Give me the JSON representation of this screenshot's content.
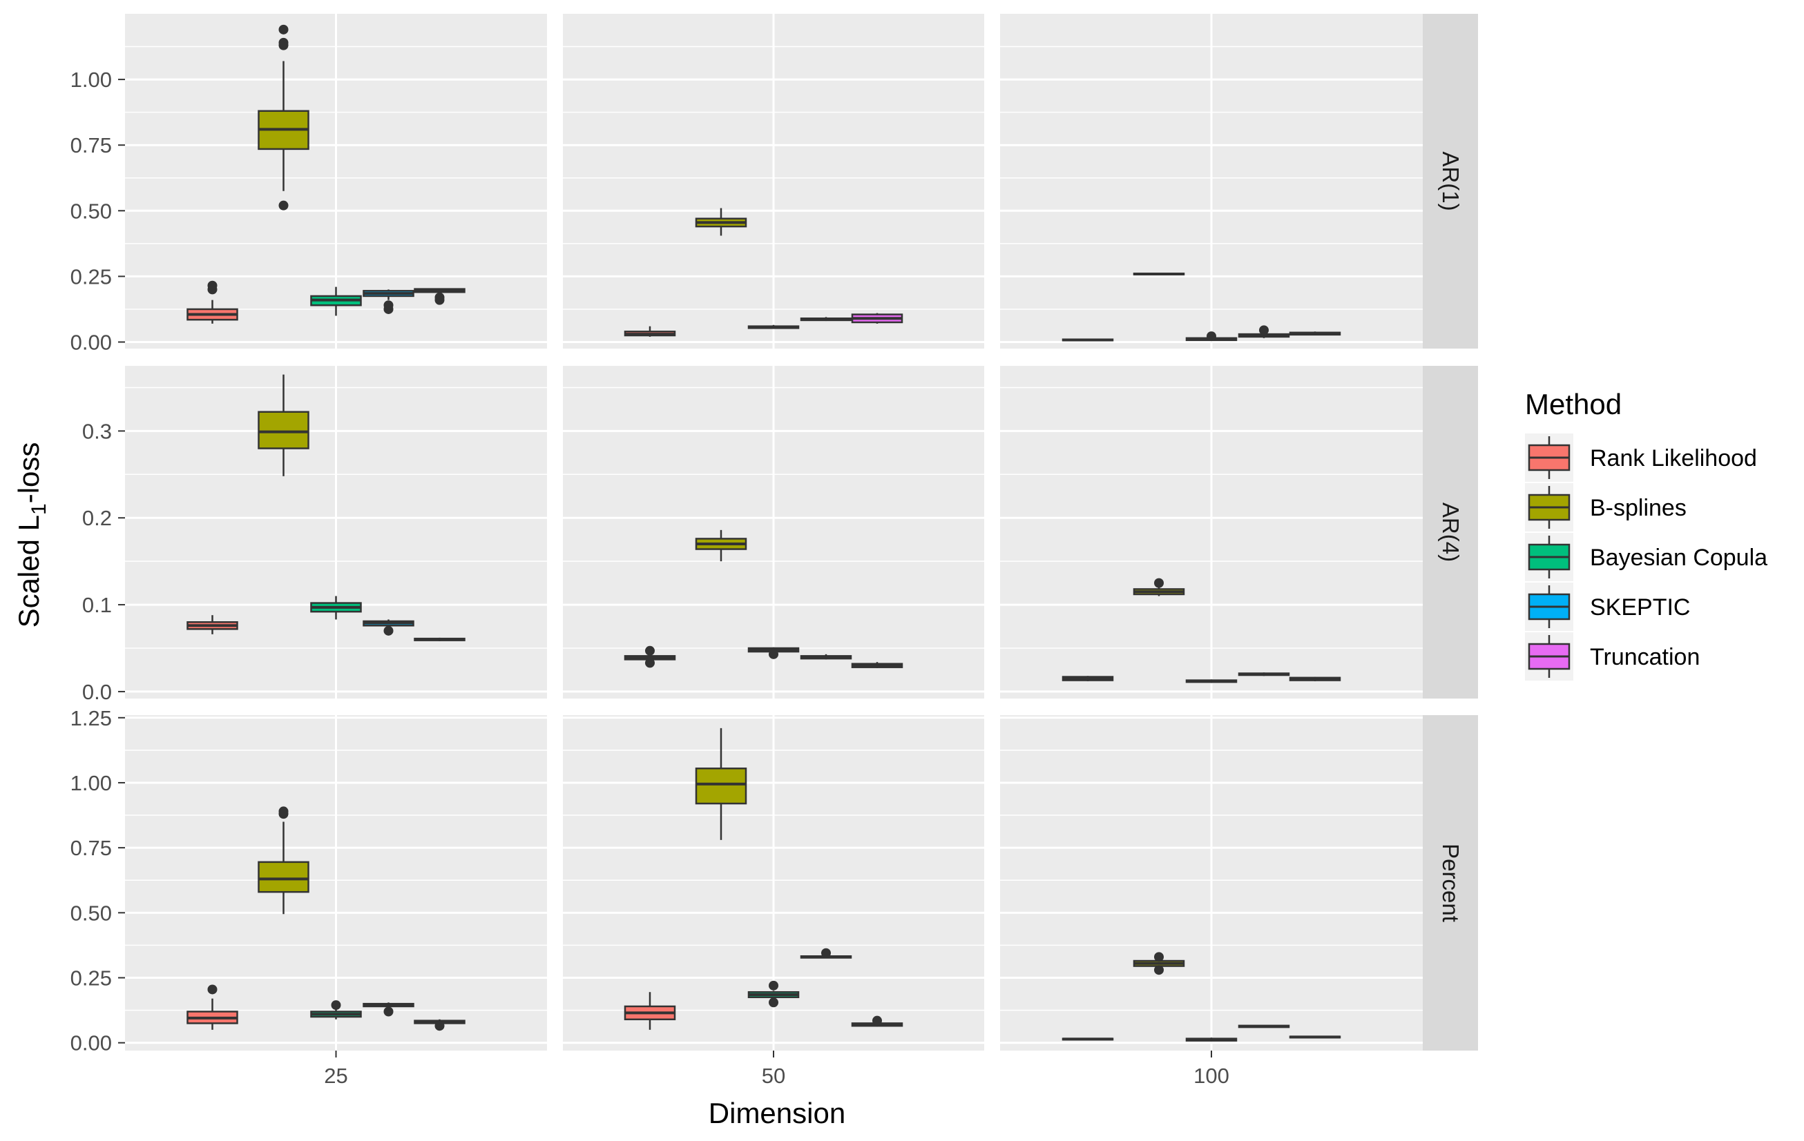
{
  "chart_data": {
    "type": "boxplot",
    "facet_rows": [
      "AR(1)",
      "AR(4)",
      "Percent"
    ],
    "facet_cols": [
      "25",
      "50",
      "100"
    ],
    "xlabel": "Dimension",
    "ylabel": "Scaled L",
    "ylabel_sub": "1",
    "ylabel_suffix": "-loss",
    "legend": {
      "title": "Method",
      "placement": "right",
      "items": [
        {
          "name": "Rank Likelihood",
          "color": "#F8766D"
        },
        {
          "name": "B-splines",
          "color": "#A3A500"
        },
        {
          "name": "Bayesian Copula",
          "color": "#00BF7D"
        },
        {
          "name": "SKEPTIC",
          "color": "#00B0F6"
        },
        {
          "name": "Truncation",
          "color": "#E76BF3"
        }
      ]
    },
    "rows": [
      {
        "label": "AR(1)",
        "ylim": [
          -0.025,
          1.25
        ],
        "ticks": [
          0.0,
          0.25,
          0.5,
          0.75,
          1.0
        ],
        "tick_labels": [
          "0.00",
          "0.25",
          "0.50",
          "0.75",
          "1.00"
        ],
        "panels": [
          {
            "col": "25",
            "boxes": [
              {
                "method": "Rank Likelihood",
                "min": 0.07,
                "q1": 0.085,
                "median": 0.105,
                "q3": 0.125,
                "max": 0.16,
                "outliers": [
                  0.2,
                  0.215
                ]
              },
              {
                "method": "B-splines",
                "min": 0.575,
                "q1": 0.735,
                "median": 0.81,
                "q3": 0.88,
                "max": 1.07,
                "outliers": [
                  0.52,
                  1.13,
                  1.14,
                  1.19
                ]
              },
              {
                "method": "Bayesian Copula",
                "min": 0.1,
                "q1": 0.14,
                "median": 0.16,
                "q3": 0.175,
                "max": 0.21,
                "outliers": []
              },
              {
                "method": "SKEPTIC",
                "min": 0.16,
                "q1": 0.175,
                "median": 0.185,
                "q3": 0.195,
                "max": 0.2,
                "outliers": [
                  0.125,
                  0.14
                ]
              },
              {
                "method": "Truncation",
                "min": 0.185,
                "q1": 0.19,
                "median": 0.197,
                "q3": 0.202,
                "max": 0.205,
                "outliers": [
                  0.16,
                  0.17
                ]
              }
            ]
          },
          {
            "col": "50",
            "boxes": [
              {
                "method": "Rank Likelihood",
                "min": 0.02,
                "q1": 0.025,
                "median": 0.03,
                "q3": 0.04,
                "max": 0.06,
                "outliers": []
              },
              {
                "method": "B-splines",
                "min": 0.405,
                "q1": 0.44,
                "median": 0.455,
                "q3": 0.47,
                "max": 0.51,
                "outliers": []
              },
              {
                "method": "Bayesian Copula",
                "min": 0.05,
                "q1": 0.053,
                "median": 0.057,
                "q3": 0.06,
                "max": 0.065,
                "outliers": []
              },
              {
                "method": "SKEPTIC",
                "min": 0.08,
                "q1": 0.083,
                "median": 0.087,
                "q3": 0.09,
                "max": 0.095,
                "outliers": []
              },
              {
                "method": "Truncation",
                "min": 0.07,
                "q1": 0.075,
                "median": 0.09,
                "q3": 0.105,
                "max": 0.11,
                "outliers": []
              }
            ]
          },
          {
            "col": "100",
            "boxes": [
              {
                "method": "Rank Likelihood",
                "min": 0.005,
                "q1": 0.006,
                "median": 0.008,
                "q3": 0.01,
                "max": 0.012,
                "outliers": []
              },
              {
                "method": "B-splines",
                "min": 0.255,
                "q1": 0.257,
                "median": 0.259,
                "q3": 0.261,
                "max": 0.263,
                "outliers": []
              },
              {
                "method": "Bayesian Copula",
                "min": 0.005,
                "q1": 0.007,
                "median": 0.01,
                "q3": 0.015,
                "max": 0.02,
                "outliers": [
                  0.022
                ]
              },
              {
                "method": "SKEPTIC",
                "min": 0.015,
                "q1": 0.02,
                "median": 0.025,
                "q3": 0.03,
                "max": 0.035,
                "outliers": [
                  0.045
                ]
              },
              {
                "method": "Truncation",
                "min": 0.025,
                "q1": 0.028,
                "median": 0.032,
                "q3": 0.036,
                "max": 0.04,
                "outliers": []
              }
            ]
          }
        ]
      },
      {
        "label": "AR(4)",
        "ylim": [
          -0.008,
          0.375
        ],
        "ticks": [
          0.0,
          0.1,
          0.2,
          0.3
        ],
        "tick_labels": [
          "0.0",
          "0.1",
          "0.2",
          "0.3"
        ],
        "panels": [
          {
            "col": "25",
            "boxes": [
              {
                "method": "Rank Likelihood",
                "min": 0.066,
                "q1": 0.072,
                "median": 0.076,
                "q3": 0.08,
                "max": 0.088,
                "outliers": []
              },
              {
                "method": "B-splines",
                "min": 0.248,
                "q1": 0.28,
                "median": 0.299,
                "q3": 0.322,
                "max": 0.365,
                "outliers": []
              },
              {
                "method": "Bayesian Copula",
                "min": 0.083,
                "q1": 0.092,
                "median": 0.097,
                "q3": 0.102,
                "max": 0.11,
                "outliers": []
              },
              {
                "method": "SKEPTIC",
                "min": 0.072,
                "q1": 0.076,
                "median": 0.079,
                "q3": 0.081,
                "max": 0.083,
                "outliers": [
                  0.07
                ]
              },
              {
                "method": "Truncation",
                "min": 0.058,
                "q1": 0.059,
                "median": 0.06,
                "q3": 0.061,
                "max": 0.062,
                "outliers": []
              }
            ]
          },
          {
            "col": "50",
            "boxes": [
              {
                "method": "Rank Likelihood",
                "min": 0.035,
                "q1": 0.037,
                "median": 0.039,
                "q3": 0.041,
                "max": 0.043,
                "outliers": [
                  0.033,
                  0.047
                ]
              },
              {
                "method": "B-splines",
                "min": 0.15,
                "q1": 0.164,
                "median": 0.17,
                "q3": 0.176,
                "max": 0.186,
                "outliers": []
              },
              {
                "method": "Bayesian Copula",
                "min": 0.045,
                "q1": 0.046,
                "median": 0.048,
                "q3": 0.05,
                "max": 0.051,
                "outliers": [
                  0.043
                ]
              },
              {
                "method": "SKEPTIC",
                "min": 0.037,
                "q1": 0.038,
                "median": 0.04,
                "q3": 0.041,
                "max": 0.043,
                "outliers": []
              },
              {
                "method": "Truncation",
                "min": 0.027,
                "q1": 0.028,
                "median": 0.03,
                "q3": 0.032,
                "max": 0.034,
                "outliers": []
              }
            ]
          },
          {
            "col": "100",
            "boxes": [
              {
                "method": "Rank Likelihood",
                "min": 0.012,
                "q1": 0.013,
                "median": 0.015,
                "q3": 0.017,
                "max": 0.018,
                "outliers": []
              },
              {
                "method": "B-splines",
                "min": 0.11,
                "q1": 0.112,
                "median": 0.115,
                "q3": 0.118,
                "max": 0.12,
                "outliers": [
                  0.125
                ]
              },
              {
                "method": "Bayesian Copula",
                "min": 0.01,
                "q1": 0.011,
                "median": 0.012,
                "q3": 0.013,
                "max": 0.014,
                "outliers": []
              },
              {
                "method": "SKEPTIC",
                "min": 0.018,
                "q1": 0.019,
                "median": 0.02,
                "q3": 0.021,
                "max": 0.022,
                "outliers": []
              },
              {
                "method": "Truncation",
                "min": 0.012,
                "q1": 0.013,
                "median": 0.014,
                "q3": 0.016,
                "max": 0.017,
                "outliers": []
              }
            ]
          }
        ]
      },
      {
        "label": "Percent",
        "ylim": [
          -0.03,
          1.26
        ],
        "ticks": [
          0.0,
          0.25,
          0.5,
          0.75,
          1.0,
          1.25
        ],
        "tick_labels": [
          "0.00",
          "0.25",
          "0.50",
          "0.75",
          "1.00",
          "1.25"
        ],
        "panels": [
          {
            "col": "25",
            "boxes": [
              {
                "method": "Rank Likelihood",
                "min": 0.05,
                "q1": 0.075,
                "median": 0.095,
                "q3": 0.12,
                "max": 0.17,
                "outliers": [
                  0.205
                ]
              },
              {
                "method": "B-splines",
                "min": 0.495,
                "q1": 0.58,
                "median": 0.63,
                "q3": 0.695,
                "max": 0.85,
                "outliers": [
                  0.88,
                  0.89
                ]
              },
              {
                "method": "Bayesian Copula",
                "min": 0.09,
                "q1": 0.1,
                "median": 0.11,
                "q3": 0.12,
                "max": 0.13,
                "outliers": [
                  0.145
                ]
              },
              {
                "method": "SKEPTIC",
                "min": 0.135,
                "q1": 0.14,
                "median": 0.145,
                "q3": 0.15,
                "max": 0.155,
                "outliers": [
                  0.12
                ]
              },
              {
                "method": "Truncation",
                "min": 0.07,
                "q1": 0.075,
                "median": 0.08,
                "q3": 0.085,
                "max": 0.09,
                "outliers": [
                  0.065
                ]
              }
            ]
          },
          {
            "col": "50",
            "boxes": [
              {
                "method": "Rank Likelihood",
                "min": 0.05,
                "q1": 0.09,
                "median": 0.115,
                "q3": 0.14,
                "max": 0.195,
                "outliers": []
              },
              {
                "method": "B-splines",
                "min": 0.78,
                "q1": 0.92,
                "median": 0.995,
                "q3": 1.055,
                "max": 1.21,
                "outliers": []
              },
              {
                "method": "Bayesian Copula",
                "min": 0.17,
                "q1": 0.175,
                "median": 0.185,
                "q3": 0.195,
                "max": 0.2,
                "outliers": [
                  0.155,
                  0.22
                ]
              },
              {
                "method": "SKEPTIC",
                "min": 0.325,
                "q1": 0.327,
                "median": 0.33,
                "q3": 0.333,
                "max": 0.335,
                "outliers": [
                  0.345
                ]
              },
              {
                "method": "Truncation",
                "min": 0.062,
                "q1": 0.065,
                "median": 0.07,
                "q3": 0.075,
                "max": 0.078,
                "outliers": [
                  0.085
                ]
              }
            ]
          },
          {
            "col": "100",
            "boxes": [
              {
                "method": "Rank Likelihood",
                "min": 0.01,
                "q1": 0.012,
                "median": 0.014,
                "q3": 0.016,
                "max": 0.018,
                "outliers": []
              },
              {
                "method": "B-splines",
                "min": 0.29,
                "q1": 0.295,
                "median": 0.305,
                "q3": 0.315,
                "max": 0.32,
                "outliers": [
                  0.28,
                  0.33
                ]
              },
              {
                "method": "Bayesian Copula",
                "min": 0.005,
                "q1": 0.008,
                "median": 0.012,
                "q3": 0.016,
                "max": 0.02,
                "outliers": []
              },
              {
                "method": "SKEPTIC",
                "min": 0.058,
                "q1": 0.06,
                "median": 0.063,
                "q3": 0.066,
                "max": 0.068,
                "outliers": []
              },
              {
                "method": "Truncation",
                "min": 0.018,
                "q1": 0.02,
                "median": 0.022,
                "q3": 0.024,
                "max": 0.026,
                "outliers": []
              }
            ]
          }
        ]
      }
    ]
  }
}
